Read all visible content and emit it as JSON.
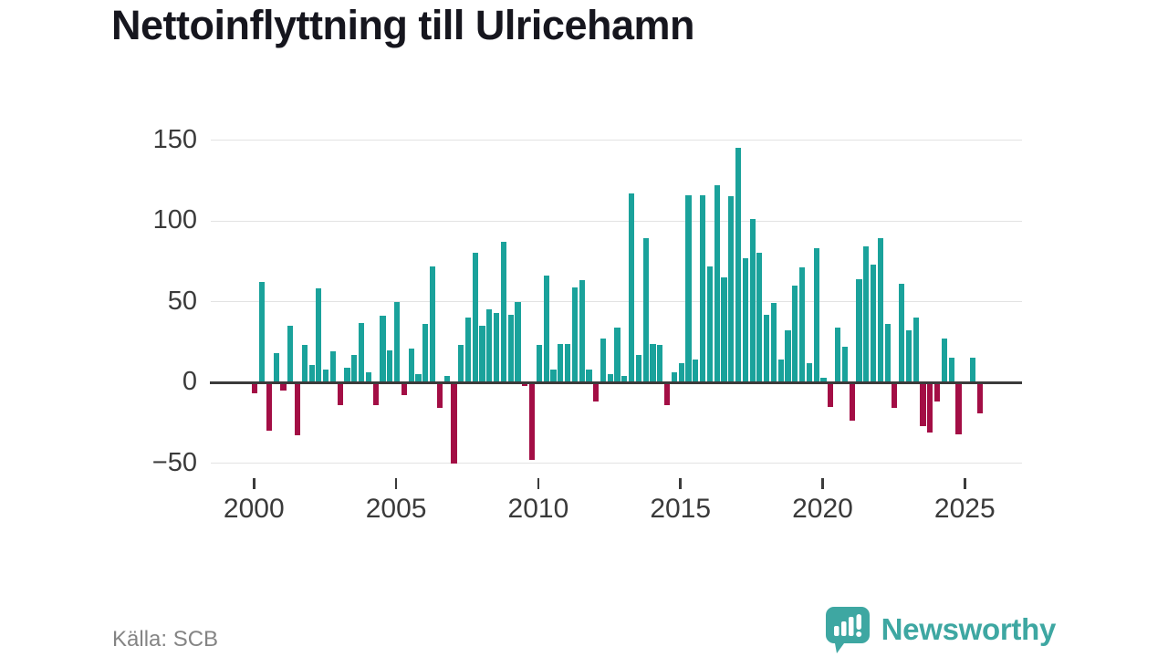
{
  "title": "Nettoinflyttning till Ulricehamn",
  "source": "Källa: SCB",
  "logo": {
    "brand": "Newsworthy"
  },
  "colors": {
    "positive_bar": "#1aa29b",
    "negative_bar": "#a30e45",
    "zero_axis": "#3b3b3b",
    "gridline": "#e2e2e2",
    "title_text": "#16161e",
    "axis_label": "#3a3a3a",
    "source_text": "#848484",
    "brand_teal": "#3ea7a2"
  },
  "chart_data": {
    "type": "bar",
    "title": "Nettoinflyttning till Ulricehamn",
    "xlabel": "",
    "ylabel": "",
    "x_unit": "quarter",
    "ylim": [
      -50,
      150
    ],
    "y_ticks": [
      150,
      100,
      50,
      0,
      -50
    ],
    "x_ticks": [
      2000,
      2005,
      2010,
      2015,
      2020,
      2025
    ],
    "grid": "horizontal",
    "legend": "none",
    "series": [
      {
        "year": 2000,
        "q": [
          -7,
          62,
          -30,
          18
        ]
      },
      {
        "year": 2001,
        "q": [
          -5,
          35,
          -33,
          23
        ]
      },
      {
        "year": 2002,
        "q": [
          11,
          58,
          8,
          19
        ]
      },
      {
        "year": 2003,
        "q": [
          -14,
          9,
          17,
          37
        ]
      },
      {
        "year": 2004,
        "q": [
          6,
          -14,
          41,
          20
        ]
      },
      {
        "year": 2005,
        "q": [
          50,
          -8,
          21,
          5
        ]
      },
      {
        "year": 2006,
        "q": [
          36,
          72,
          -16,
          4
        ]
      },
      {
        "year": 2007,
        "q": [
          -50,
          23,
          40,
          80
        ]
      },
      {
        "year": 2008,
        "q": [
          35,
          45,
          43,
          87
        ]
      },
      {
        "year": 2009,
        "q": [
          42,
          50,
          -2,
          -48
        ]
      },
      {
        "year": 2010,
        "q": [
          23,
          66,
          8,
          24
        ]
      },
      {
        "year": 2011,
        "q": [
          24,
          59,
          63,
          8
        ]
      },
      {
        "year": 2012,
        "q": [
          -12,
          27,
          5,
          34
        ]
      },
      {
        "year": 2013,
        "q": [
          4,
          117,
          17,
          89
        ]
      },
      {
        "year": 2014,
        "q": [
          24,
          23,
          -14,
          6
        ]
      },
      {
        "year": 2015,
        "q": [
          12,
          116,
          14,
          116
        ]
      },
      {
        "year": 2016,
        "q": [
          72,
          122,
          65,
          115
        ]
      },
      {
        "year": 2017,
        "q": [
          145,
          77,
          101,
          80
        ]
      },
      {
        "year": 2018,
        "q": [
          42,
          49,
          14,
          32
        ]
      },
      {
        "year": 2019,
        "q": [
          60,
          71,
          12,
          83
        ]
      },
      {
        "year": 2020,
        "q": [
          3,
          -15,
          34,
          22
        ]
      },
      {
        "year": 2021,
        "q": [
          -24,
          64,
          84,
          73
        ]
      },
      {
        "year": 2022,
        "q": [
          89,
          36,
          -16,
          61
        ]
      },
      {
        "year": 2023,
        "q": [
          32,
          40,
          -27,
          -31
        ]
      },
      {
        "year": 2024,
        "q": [
          -12,
          27,
          15,
          -32
        ]
      },
      {
        "year": 2025,
        "q": [
          0,
          15,
          -19
        ]
      }
    ]
  }
}
